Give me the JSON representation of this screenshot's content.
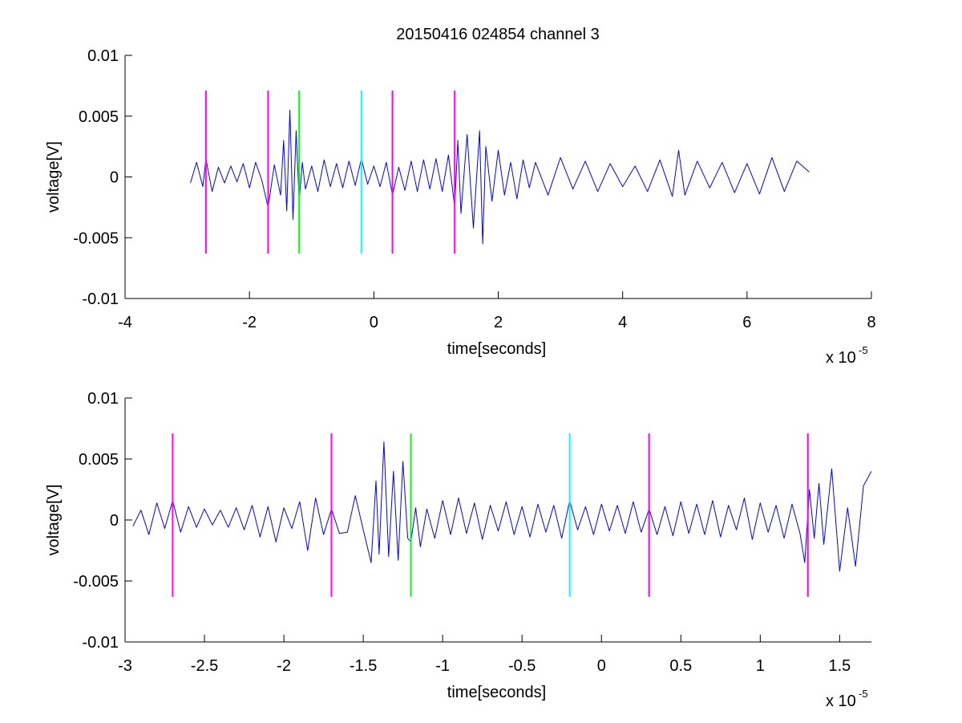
{
  "figure": {
    "title": "20150416 024854 channel 3"
  },
  "colors": {
    "signal": "#0000ff",
    "magenta": "#ff00ff",
    "green": "#00ff00",
    "cyan": "#00ffff",
    "axis": "#000000"
  },
  "chart_data": [
    {
      "type": "line",
      "title": "20150416 024854 channel 3",
      "xlabel": "time[seconds]",
      "ylabel": "voltage[V]",
      "x_exponent_label": "x 10",
      "x_exponent": "-5",
      "xlim": [
        -4,
        8
      ],
      "ylim": [
        -0.01,
        0.01
      ],
      "xticks": [
        -4,
        -2,
        0,
        2,
        4,
        6,
        8
      ],
      "xtick_labels": [
        "-4",
        "-2",
        "0",
        "2",
        "4",
        "6",
        "8"
      ],
      "yticks": [
        -0.01,
        -0.005,
        0,
        0.005,
        0.01
      ],
      "ytick_labels": [
        "-0.01",
        "-0.005",
        "0",
        "0.005",
        "0.01"
      ],
      "grid": false,
      "series": [
        {
          "color": "blue",
          "x": [
            -2.95,
            -2.85,
            -2.75,
            -2.7,
            -2.6,
            -2.5,
            -2.4,
            -2.3,
            -2.2,
            -2.1,
            -2.0,
            -1.9,
            -1.8,
            -1.7,
            -1.6,
            -1.5,
            -1.45,
            -1.4,
            -1.35,
            -1.3,
            -1.25,
            -1.2,
            -1.15,
            -1.1,
            -1.0,
            -0.9,
            -0.8,
            -0.7,
            -0.6,
            -0.5,
            -0.4,
            -0.3,
            -0.2,
            -0.1,
            0.0,
            0.1,
            0.2,
            0.3,
            0.4,
            0.5,
            0.6,
            0.7,
            0.8,
            0.9,
            1.0,
            1.1,
            1.2,
            1.3,
            1.35,
            1.4,
            1.5,
            1.6,
            1.7,
            1.75,
            1.8,
            1.9,
            2.0,
            2.1,
            2.2,
            2.3,
            2.4,
            2.5,
            2.6,
            2.8,
            3.0,
            3.2,
            3.4,
            3.6,
            3.8,
            4.0,
            4.2,
            4.4,
            4.6,
            4.8,
            4.9,
            5.0,
            5.2,
            5.4,
            5.6,
            5.8,
            6.0,
            6.2,
            6.4,
            6.6,
            6.8,
            7.0
          ],
          "y": [
            -0.0005,
            0.0012,
            -0.0008,
            0.0015,
            -0.0012,
            0.0008,
            -0.0005,
            0.0009,
            -0.0004,
            0.0011,
            -0.0009,
            0.0012,
            -0.0003,
            -0.0025,
            0.001,
            -0.0015,
            0.003,
            -0.0028,
            0.0055,
            -0.0035,
            0.0038,
            -0.002,
            0.0012,
            -0.001,
            0.0009,
            -0.0012,
            0.0014,
            -0.0008,
            0.0011,
            -0.0009,
            0.0013,
            -0.0007,
            0.0015,
            -0.0006,
            0.0009,
            -0.0008,
            0.0012,
            -0.0015,
            0.0008,
            -0.0011,
            0.0013,
            -0.0012,
            0.0014,
            -0.001,
            0.0015,
            -0.0012,
            0.0018,
            -0.0025,
            0.003,
            -0.003,
            0.0035,
            -0.0042,
            0.0038,
            -0.0055,
            0.0025,
            -0.002,
            0.0022,
            -0.0015,
            0.0012,
            -0.0018,
            0.0014,
            -0.0009,
            0.0012,
            -0.0015,
            0.0016,
            -0.001,
            0.0013,
            -0.0012,
            0.0011,
            -0.0008,
            0.0009,
            -0.0012,
            0.0014,
            -0.0016,
            0.0022,
            -0.0015,
            0.0013,
            -0.0009,
            0.0012,
            -0.0013,
            0.0011,
            -0.0014,
            0.0016,
            -0.0012,
            0.0013,
            0.0004
          ]
        }
      ],
      "markers": [
        {
          "x": -2.7,
          "color": "magenta"
        },
        {
          "x": -1.7,
          "color": "magenta"
        },
        {
          "x": -1.2,
          "color": "green"
        },
        {
          "x": -0.2,
          "color": "cyan"
        },
        {
          "x": 0.3,
          "color": "magenta"
        },
        {
          "x": 1.3,
          "color": "magenta"
        }
      ],
      "marker_range": [
        -0.0063,
        0.0071
      ]
    },
    {
      "type": "line",
      "title": "",
      "xlabel": "time[seconds]",
      "ylabel": "voltage[V]",
      "x_exponent_label": "x 10",
      "x_exponent": "-5",
      "xlim": [
        -3,
        1.7
      ],
      "ylim": [
        -0.01,
        0.01
      ],
      "xticks": [
        -3,
        -2.5,
        -2,
        -1.5,
        -1,
        -0.5,
        0,
        0.5,
        1,
        1.5
      ],
      "xtick_labels": [
        "-3",
        "-2.5",
        "-2",
        "-1.5",
        "-1",
        "-0.5",
        "0",
        "0.5",
        "1",
        "1.5"
      ],
      "yticks": [
        -0.01,
        -0.005,
        0,
        0.005,
        0.01
      ],
      "ytick_labels": [
        "-0.01",
        "-0.005",
        "0",
        "0.005",
        "0.01"
      ],
      "grid": false,
      "series": [
        {
          "color": "blue",
          "x": [
            -2.95,
            -2.9,
            -2.85,
            -2.8,
            -2.75,
            -2.7,
            -2.65,
            -2.6,
            -2.55,
            -2.5,
            -2.45,
            -2.4,
            -2.35,
            -2.3,
            -2.25,
            -2.2,
            -2.15,
            -2.1,
            -2.05,
            -2.0,
            -1.95,
            -1.9,
            -1.85,
            -1.8,
            -1.75,
            -1.7,
            -1.65,
            -1.6,
            -1.55,
            -1.5,
            -1.45,
            -1.42,
            -1.4,
            -1.37,
            -1.34,
            -1.31,
            -1.28,
            -1.25,
            -1.22,
            -1.2,
            -1.17,
            -1.14,
            -1.1,
            -1.05,
            -1.0,
            -0.95,
            -0.9,
            -0.85,
            -0.8,
            -0.75,
            -0.7,
            -0.65,
            -0.6,
            -0.55,
            -0.5,
            -0.45,
            -0.4,
            -0.35,
            -0.3,
            -0.25,
            -0.2,
            -0.15,
            -0.1,
            -0.05,
            0.0,
            0.05,
            0.1,
            0.15,
            0.2,
            0.25,
            0.3,
            0.35,
            0.4,
            0.45,
            0.5,
            0.55,
            0.6,
            0.65,
            0.7,
            0.75,
            0.8,
            0.85,
            0.9,
            0.95,
            1.0,
            1.05,
            1.1,
            1.15,
            1.2,
            1.25,
            1.28,
            1.31,
            1.34,
            1.37,
            1.4,
            1.45,
            1.5,
            1.55,
            1.6,
            1.65,
            1.7
          ],
          "y": [
            -0.0005,
            0.0008,
            -0.0012,
            0.0014,
            -0.0007,
            0.0016,
            -0.001,
            0.0011,
            -0.0006,
            0.0009,
            -0.0004,
            0.0008,
            -0.0006,
            0.001,
            -0.0008,
            0.0012,
            -0.0014,
            0.0011,
            -0.0018,
            0.001,
            -0.0007,
            0.0015,
            -0.0025,
            0.0018,
            -0.0012,
            0.0009,
            -0.0011,
            -0.001,
            0.002,
            -0.0008,
            -0.0035,
            0.0032,
            -0.0028,
            0.0064,
            -0.003,
            0.004,
            -0.0033,
            0.0048,
            -0.0015,
            -0.0018,
            0.001,
            -0.0022,
            0.0009,
            -0.0015,
            0.0016,
            -0.0012,
            0.0018,
            -0.0011,
            0.0014,
            -0.0016,
            0.0012,
            -0.0009,
            0.0015,
            -0.0012,
            0.0011,
            -0.0014,
            0.0013,
            -0.001,
            0.0012,
            -0.0015,
            0.0016,
            -0.0008,
            0.0011,
            -0.0012,
            0.0013,
            -0.0009,
            0.0012,
            -0.0011,
            0.0015,
            -0.001,
            0.0009,
            -0.0012,
            0.0011,
            -0.0013,
            0.0015,
            -0.0011,
            0.0013,
            -0.0012,
            0.0016,
            -0.0014,
            0.0012,
            -0.0008,
            0.0018,
            -0.0016,
            0.0014,
            -0.001,
            0.0012,
            -0.0015,
            0.0013,
            -0.0011,
            -0.0035,
            0.0025,
            -0.0015,
            0.003,
            -0.002,
            0.0042,
            -0.0042,
            0.001,
            -0.0038,
            0.0028,
            0.004
          ]
        }
      ],
      "markers": [
        {
          "x": -2.7,
          "color": "magenta"
        },
        {
          "x": -1.7,
          "color": "magenta"
        },
        {
          "x": -1.2,
          "color": "green"
        },
        {
          "x": -0.2,
          "color": "cyan"
        },
        {
          "x": 0.3,
          "color": "magenta"
        },
        {
          "x": 1.3,
          "color": "magenta"
        }
      ],
      "marker_range": [
        -0.0063,
        0.0071
      ]
    }
  ]
}
